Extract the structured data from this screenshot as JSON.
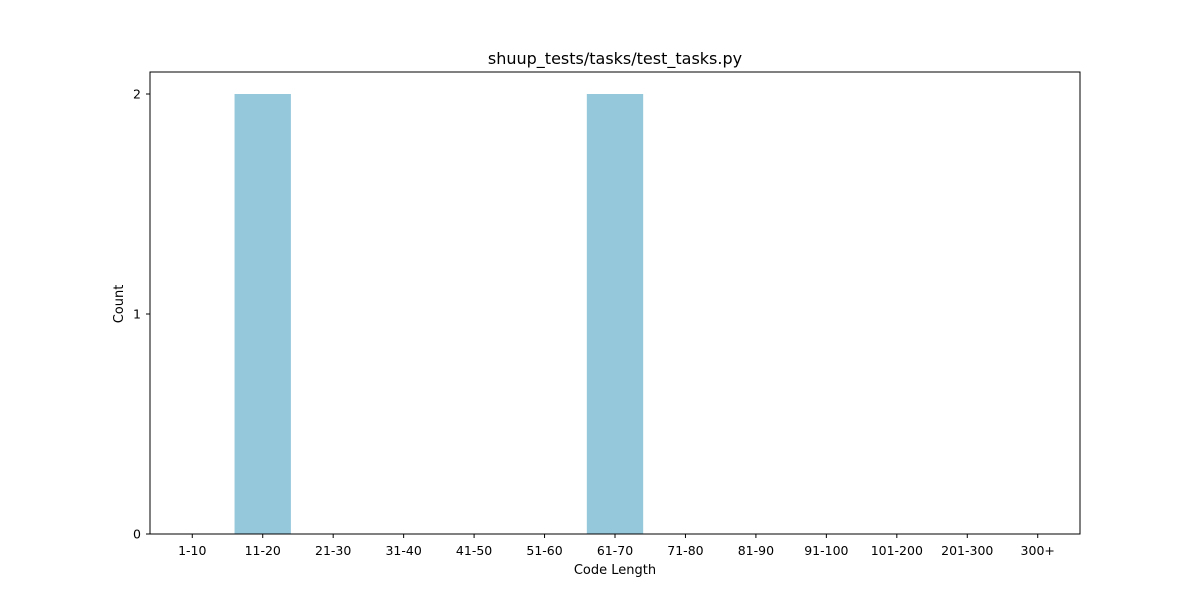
{
  "chart_data": {
    "type": "bar",
    "title": "shuup_tests/tasks/test_tasks.py",
    "xlabel": "Code Length",
    "ylabel": "Count",
    "categories": [
      "1-10",
      "11-20",
      "21-30",
      "31-40",
      "41-50",
      "51-60",
      "61-70",
      "71-80",
      "81-90",
      "91-100",
      "101-200",
      "201-300",
      "300+"
    ],
    "values": [
      0,
      2,
      0,
      0,
      0,
      0,
      2,
      0,
      0,
      0,
      0,
      0,
      0
    ],
    "ylim": [
      0,
      2.1
    ],
    "yticks": [
      0,
      1,
      2
    ],
    "ytick_labels": [
      "0",
      "1",
      "2"
    ],
    "grid": false,
    "legend": "none",
    "bar_color": "#96c8dc"
  }
}
